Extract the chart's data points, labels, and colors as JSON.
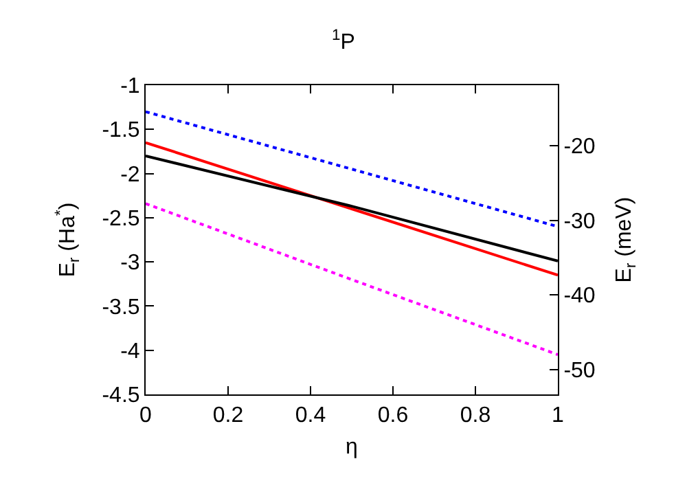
{
  "chart_data": {
    "type": "line",
    "title": "$^{1}$P",
    "xlabel": "η",
    "ylabel": "E$_{r}$ (Ha$^{*}$)",
    "y2label": "E$_{r}$ (meV)",
    "x": [
      0,
      0.5,
      1
    ],
    "series": [
      {
        "color": "#0000ff",
        "values": [
          -1.3,
          -1.95,
          -2.6
        ],
        "line_style": "dotted"
      },
      {
        "color": "#ff0000",
        "values": [
          -1.65,
          -2.4,
          -3.15
        ],
        "line_style": "solid"
      },
      {
        "color": "#000000",
        "values": [
          -1.8,
          -2.37,
          -2.99
        ],
        "line_style": "solid"
      },
      {
        "color": "#ff00ff",
        "values": [
          -2.34,
          -3.2,
          -4.05
        ],
        "line_style": "dotted"
      }
    ],
    "xlim": [
      0,
      1
    ],
    "xticks": [
      0,
      0.2,
      0.4,
      0.6,
      0.8,
      1
    ],
    "ylim": [
      -4.5,
      -1
    ],
    "yticks": [
      -4.5,
      -4,
      -3.5,
      -3,
      -2.5,
      -2,
      -1.5,
      -1
    ],
    "y2lim": [
      -53.36,
      -11.86
    ],
    "y2ticks": [
      -50,
      -40,
      -30,
      -20
    ]
  }
}
